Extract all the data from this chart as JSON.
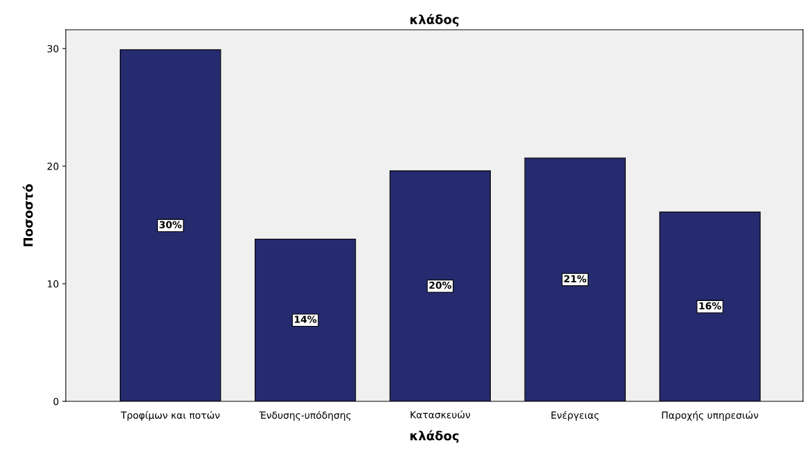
{
  "chart_data": {
    "type": "bar",
    "title": "κλάδος",
    "xlabel": "κλάδος",
    "ylabel": "Ποσοστό",
    "categories": [
      "Τροφίμων και ποτών",
      "Ένδυσης-υπόδησης",
      "Κατασκευών",
      "Ενέργειας",
      "Παροχής υπηρεσιών"
    ],
    "values": [
      29.9,
      13.8,
      19.6,
      20.7,
      16.1
    ],
    "value_labels": [
      "30%",
      "14%",
      "20%",
      "21%",
      "16%"
    ],
    "color": "#262a6e",
    "ylim": [
      0,
      31.6
    ],
    "yticks": [
      0,
      10,
      20,
      30
    ],
    "grid": false
  }
}
